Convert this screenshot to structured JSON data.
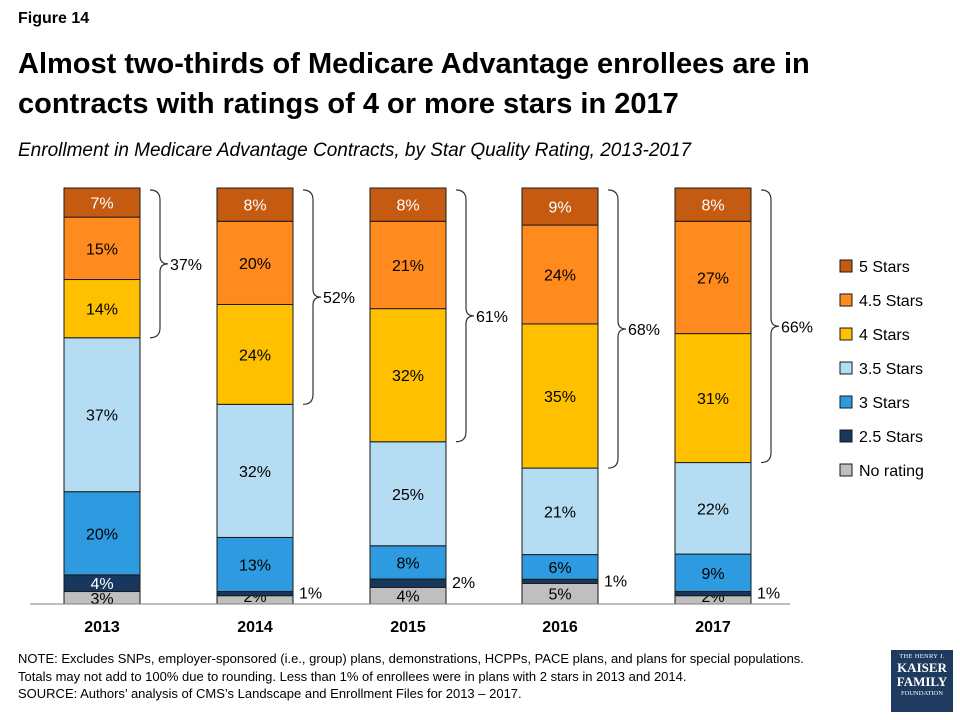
{
  "header": {
    "figure_label": "Figure 14",
    "title": "Almost two-thirds of Medicare Advantage enrollees are in contracts with ratings of 4 or more stars in 2017",
    "subtitle": "Enrollment in Medicare Advantage Contracts, by Star Quality Rating, 2013-2017"
  },
  "chart_data": {
    "type": "bar",
    "stacked": true,
    "categories": [
      "2013",
      "2014",
      "2015",
      "2016",
      "2017"
    ],
    "ylim": [
      0,
      100
    ],
    "grid": false,
    "legend_position": "right",
    "series": [
      {
        "name": "No rating",
        "color": "#bfbfbf",
        "values": [
          3,
          2,
          4,
          5,
          2
        ],
        "labels": [
          "3%",
          "2%",
          "4%",
          "5%",
          "2%"
        ]
      },
      {
        "name": "2.5 Stars",
        "color": "#17375e",
        "values": [
          4,
          1,
          2,
          1,
          1
        ],
        "labels": [
          "4%",
          "1%",
          "2%",
          "1%",
          "1%"
        ]
      },
      {
        "name": "3 Stars",
        "color": "#2e9ae0",
        "values": [
          20,
          13,
          8,
          6,
          9
        ],
        "labels": [
          "20%",
          "13%",
          "8%",
          "6%",
          "9%"
        ]
      },
      {
        "name": "3.5 Stars",
        "color": "#b4dcf2",
        "values": [
          37,
          32,
          25,
          21,
          22
        ],
        "labels": [
          "37%",
          "32%",
          "25%",
          "21%",
          "22%"
        ]
      },
      {
        "name": "4 Stars",
        "color": "#ffc000",
        "values": [
          14,
          24,
          32,
          35,
          31
        ],
        "labels": [
          "14%",
          "24%",
          "32%",
          "35%",
          "31%"
        ]
      },
      {
        "name": "4.5 Stars",
        "color": "#ff8b1e",
        "values": [
          15,
          20,
          21,
          24,
          27
        ],
        "labels": [
          "15%",
          "20%",
          "21%",
          "24%",
          "27%"
        ]
      },
      {
        "name": "5 Stars",
        "color": "#c55a11",
        "values": [
          7,
          8,
          8,
          9,
          8
        ],
        "labels": [
          "7%",
          "8%",
          "8%",
          "9%",
          "8%"
        ]
      }
    ],
    "brackets": [
      "37%",
      "52%",
      "61%",
      "68%",
      "66%"
    ]
  },
  "footer": {
    "note": "NOTE:  Excludes SNPs, employer-sponsored  (i.e., group) plans, demonstrations, HCPPs, PACE plans, and plans for special populations.",
    "note2": "Totals may not add to 100% due to rounding.  Less than 1% of enrollees were in plans with 2 stars in 2013 and 2014.",
    "source": "SOURCE:  Authors’ analysis of CMS’s Landscape and Enrollment  Files for 2013 – 2017.",
    "logo_line1": "THE HENRY J.",
    "logo_line2": "KAISER",
    "logo_line3": "FAMILY",
    "logo_line4": "FOUNDATION"
  }
}
